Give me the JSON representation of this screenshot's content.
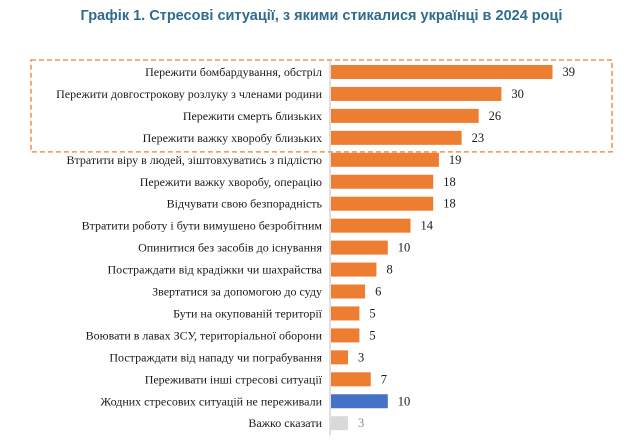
{
  "chart_data": {
    "type": "bar",
    "orientation": "horizontal",
    "title": "Графік 1. Стресові ситуації, з якими стикалися українці в 2024 році",
    "categories": [
      "Пережити бомбардування, обстріл",
      "Пережити довгострокову розлуку з членами родини",
      "Пережити смерть близьких",
      "Пережити важку хворобу близьких",
      "Втратити віру в людей, зіштовхуватись з підлістю",
      "Пережити важку хворобу, операцію",
      "Відчувати свою безпорадність",
      "Втратити роботу і бути вимушено безробітним",
      "Опинитися без засобів до існування",
      "Постраждати від крадіжки чи шахрайства",
      "Звертатися за допомогою до суду",
      "Бути на окупованій території",
      "Воювати в лавах ЗСУ, територіальної оборони",
      "Постраждати від нападу чи пограбування",
      "Переживати інші стресові ситуації",
      "Жодних стресових ситуацій не переживали",
      "Важко сказати"
    ],
    "values": [
      39,
      30,
      26,
      23,
      19,
      18,
      18,
      14,
      10,
      8,
      6,
      5,
      5,
      3,
      7,
      10,
      3
    ],
    "bar_colors": [
      "#ed7d31",
      "#ed7d31",
      "#ed7d31",
      "#ed7d31",
      "#ed7d31",
      "#ed7d31",
      "#ed7d31",
      "#ed7d31",
      "#ed7d31",
      "#ed7d31",
      "#ed7d31",
      "#ed7d31",
      "#ed7d31",
      "#ed7d31",
      "#ed7d31",
      "#4472c4",
      "#d9d9d9"
    ],
    "highlighted_rows": [
      0,
      1,
      2,
      3
    ],
    "highlight_color": "#ed7d31",
    "xlim": [
      0,
      40
    ],
    "grid": false
  }
}
